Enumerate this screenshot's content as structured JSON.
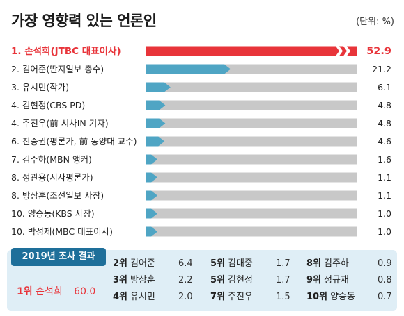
{
  "header": {
    "title": "가장 영향력 있는 언론인",
    "unit": "(단위: %)"
  },
  "chart_data": {
    "type": "bar",
    "orientation": "horizontal",
    "categories": [
      "1. 손석희(JTBC 대표이사)",
      "2. 김어준(딴지일보 총수)",
      "3. 유시민(작가)",
      "4. 김현정(CBS PD)",
      "4. 주진우(前 시사IN 기자)",
      "6. 진중권(평론가, 前 동양대 교수)",
      "7. 김주하(MBN 앵커)",
      "8. 정관용(시사평론가)",
      "8. 방상훈(조선일보 사장)",
      "10. 양승동(KBS 사장)",
      "10. 박성제(MBC 대표이사)"
    ],
    "value_labels": [
      "52.9",
      "21.2",
      "6.1",
      "4.8",
      "4.8",
      "4.6",
      "1.6",
      "1.1",
      "1.1",
      "1.0",
      "1.0"
    ],
    "values": [
      52.9,
      21.2,
      6.1,
      4.8,
      4.8,
      4.6,
      1.6,
      1.1,
      1.1,
      1.0,
      1.0
    ],
    "highlight_index": 0,
    "colors": {
      "highlight": "#e8343a",
      "bar": "#4fa5c4",
      "track": "#c8c8c8",
      "highlight_text": "#e8343a"
    }
  },
  "results_2019": {
    "label": "2019년 조사 결과",
    "winner": {
      "rank": "1위",
      "name": "손석희",
      "score": "60.0"
    },
    "columns": [
      [
        {
          "rank": "2위",
          "name": "김어준",
          "score": "6.4"
        },
        {
          "rank": "3위",
          "name": "방상훈",
          "score": "2.2"
        },
        {
          "rank": "4위",
          "name": "유시민",
          "score": "2.0"
        }
      ],
      [
        {
          "rank": "5위",
          "name": "김대중",
          "score": "1.7"
        },
        {
          "rank": "5위",
          "name": "김현정",
          "score": "1.7"
        },
        {
          "rank": "7위",
          "name": "주진우",
          "score": "1.5"
        }
      ],
      [
        {
          "rank": "8위",
          "name": "김주하",
          "score": "0.9"
        },
        {
          "rank": "9위",
          "name": "정규재",
          "score": "0.8"
        },
        {
          "rank": "10위",
          "name": "양승동",
          "score": "0.7"
        }
      ]
    ]
  }
}
